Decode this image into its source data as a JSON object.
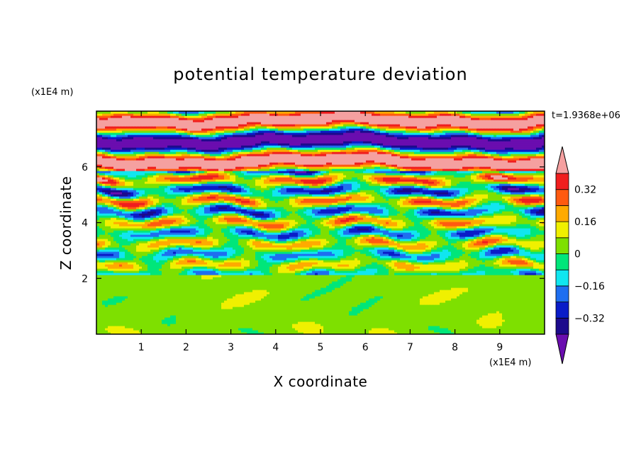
{
  "chart_data": {
    "type": "heatmap",
    "title": "potential temperature deviation",
    "xlabel": "X coordinate",
    "ylabel": "Z coordinate",
    "x_unit": "(x1E4 m)",
    "y_unit": "(x1E4 m)",
    "time_label": "t=1.9368e+06",
    "xlim": [
      0,
      10
    ],
    "ylim": [
      0,
      8
    ],
    "x_ticks": [
      1,
      2,
      3,
      4,
      5,
      6,
      7,
      8,
      9
    ],
    "y_ticks": [
      2,
      4,
      6
    ],
    "colorbar": {
      "levels": [
        -0.4,
        -0.32,
        -0.24,
        -0.16,
        -0.08,
        0,
        0.08,
        0.16,
        0.24,
        0.32,
        0.4
      ],
      "tick_labels": [
        "0.32",
        "0.16",
        "0",
        "−0.16",
        "−0.32"
      ],
      "tick_values": [
        0.32,
        0.16,
        0,
        -0.16,
        -0.32
      ],
      "colors": [
        "#6a0daf",
        "#1c0a8c",
        "#0a1cc8",
        "#1e6ef0",
        "#10e6f0",
        "#00e67a",
        "#7ee000",
        "#f0f000",
        "#ffaa00",
        "#ff5a10",
        "#f01e1e",
        "#f5a0a0"
      ],
      "extend": "both"
    },
    "grid": false,
    "legend": "colorbar-right"
  }
}
